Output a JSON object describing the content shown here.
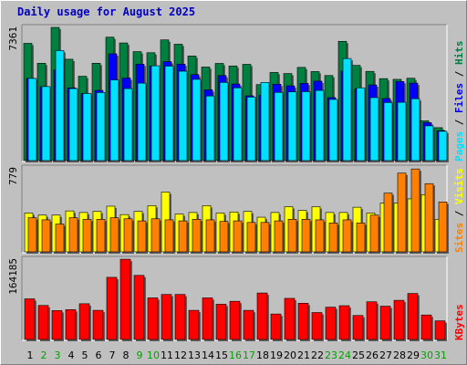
{
  "title": "Daily usage for August 2025",
  "colors": {
    "hits": "#008040",
    "files": "#0000ff",
    "pages": "#00e0ff",
    "visits": "#ffff00",
    "sites": "#ff8000",
    "kbytes": "#ff0000",
    "weekend": "#00a000",
    "weekday": "#000000",
    "panel": "#c0c0c0"
  },
  "chart_data": [
    {
      "type": "bar",
      "title": "Daily usage for August 2025",
      "ylabel_max": "7361",
      "ylim": [
        0,
        7361
      ],
      "categories": [
        "1",
        "2",
        "3",
        "4",
        "5",
        "6",
        "7",
        "8",
        "9",
        "10",
        "11",
        "12",
        "13",
        "14",
        "15",
        "16",
        "17",
        "18",
        "19",
        "20",
        "21",
        "22",
        "23",
        "24",
        "25",
        "26",
        "27",
        "28",
        "29",
        "30",
        "31"
      ],
      "weekend_days": [
        "2",
        "3",
        "9",
        "10",
        "16",
        "17",
        "23",
        "24",
        "30",
        "31"
      ],
      "series": [
        {
          "name": "Hits",
          "values": [
            6480,
            5380,
            7360,
            5600,
            4660,
            5380,
            6820,
            6500,
            6020,
            5960,
            6670,
            6430,
            5780,
            5170,
            5370,
            5230,
            5320,
            4200,
            4870,
            4810,
            5150,
            4920,
            4700,
            6590,
            5260,
            4930,
            4530,
            4490,
            4550,
            2200,
            1820
          ]
        },
        {
          "name": "Files",
          "values": [
            4540,
            4090,
            5010,
            4020,
            3710,
            3880,
            5900,
            4560,
            5330,
            5220,
            5470,
            5330,
            4750,
            3910,
            4700,
            4230,
            3580,
            3620,
            4220,
            4130,
            4270,
            4390,
            3480,
            4940,
            3960,
            4180,
            3430,
            4370,
            4280,
            2100,
            1650
          ]
        },
        {
          "name": "Pages",
          "values": [
            4540,
            4090,
            6080,
            3980,
            3710,
            3760,
            4460,
            3980,
            4280,
            5240,
            5220,
            4940,
            4490,
            3570,
            4320,
            4020,
            3510,
            4320,
            3770,
            3800,
            3810,
            3880,
            3380,
            5640,
            4020,
            3480,
            3210,
            3220,
            3420,
            1920,
            1620
          ]
        },
        {
          "name": "Visits",
          "values": [
            370,
            350,
            350,
            390,
            375,
            385,
            435,
            355,
            385,
            440,
            570,
            360,
            375,
            440,
            370,
            380,
            385,
            330,
            375,
            430,
            395,
            430,
            375,
            375,
            425,
            370,
            465,
            465,
            505,
            545,
            310
          ]
        },
        {
          "name": "Sites",
          "values": [
            325,
            305,
            265,
            325,
            310,
            310,
            325,
            315,
            295,
            315,
            305,
            295,
            310,
            305,
            290,
            295,
            280,
            280,
            295,
            310,
            310,
            305,
            275,
            305,
            275,
            350,
            560,
            750,
            790,
            650,
            475
          ]
        }
      ],
      "legend": [
        "Pages",
        "Files",
        "Hits",
        "Sites",
        "Visits"
      ],
      "visits_label_max": "779"
    },
    {
      "type": "bar",
      "ylabel_max": "164185",
      "ylim": [
        0,
        164185
      ],
      "series": [
        {
          "name": "KBytes",
          "values": [
            83000,
            69500,
            59000,
            61000,
            73000,
            59500,
            127000,
            164000,
            131000,
            85000,
            92000,
            92000,
            59500,
            85000,
            72000,
            78000,
            59500,
            95000,
            52000,
            84000,
            74000,
            55000,
            66000,
            69000,
            49000,
            77000,
            68000,
            80000,
            94000,
            50000,
            38000
          ]
        }
      ]
    }
  ]
}
